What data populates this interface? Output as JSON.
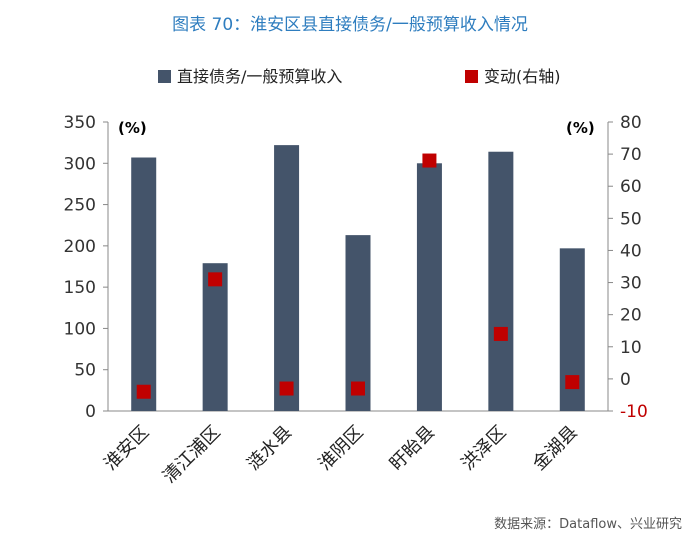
{
  "page": {
    "title": "图表 70：淮安区县直接债务/一般预算收入情况",
    "source": "数据来源：Dataflow、兴业研究"
  },
  "chart_data": {
    "type": "bar",
    "categories": [
      "淮安区",
      "清江浦区",
      "涟水县",
      "淮阴区",
      "盱眙县",
      "洪泽区",
      "金湖县"
    ],
    "series": [
      {
        "name": "直接债务/一般预算收入",
        "type": "bar",
        "axis": "left",
        "values": [
          307,
          179,
          322,
          213,
          300,
          314,
          197
        ],
        "color": "#44546a"
      },
      {
        "name": "变动(右轴)",
        "type": "scatter",
        "axis": "right",
        "values": [
          -4,
          31,
          -3,
          -3,
          68,
          14,
          -1
        ],
        "color": "#c00000"
      }
    ],
    "y_left": {
      "unit_label": "(%)",
      "min": 0,
      "max": 350,
      "step": 50,
      "ticks": [
        "0",
        "50",
        "100",
        "150",
        "200",
        "250",
        "300",
        "350"
      ]
    },
    "y_right": {
      "unit_label": "(%)",
      "min": -10,
      "max": 80,
      "step": 10,
      "ticks": [
        "-10",
        "0",
        "10",
        "20",
        "30",
        "40",
        "50",
        "60",
        "70",
        "80"
      ],
      "negative_tick_color": "#c00000"
    },
    "legend_position": "top",
    "grid": false
  }
}
